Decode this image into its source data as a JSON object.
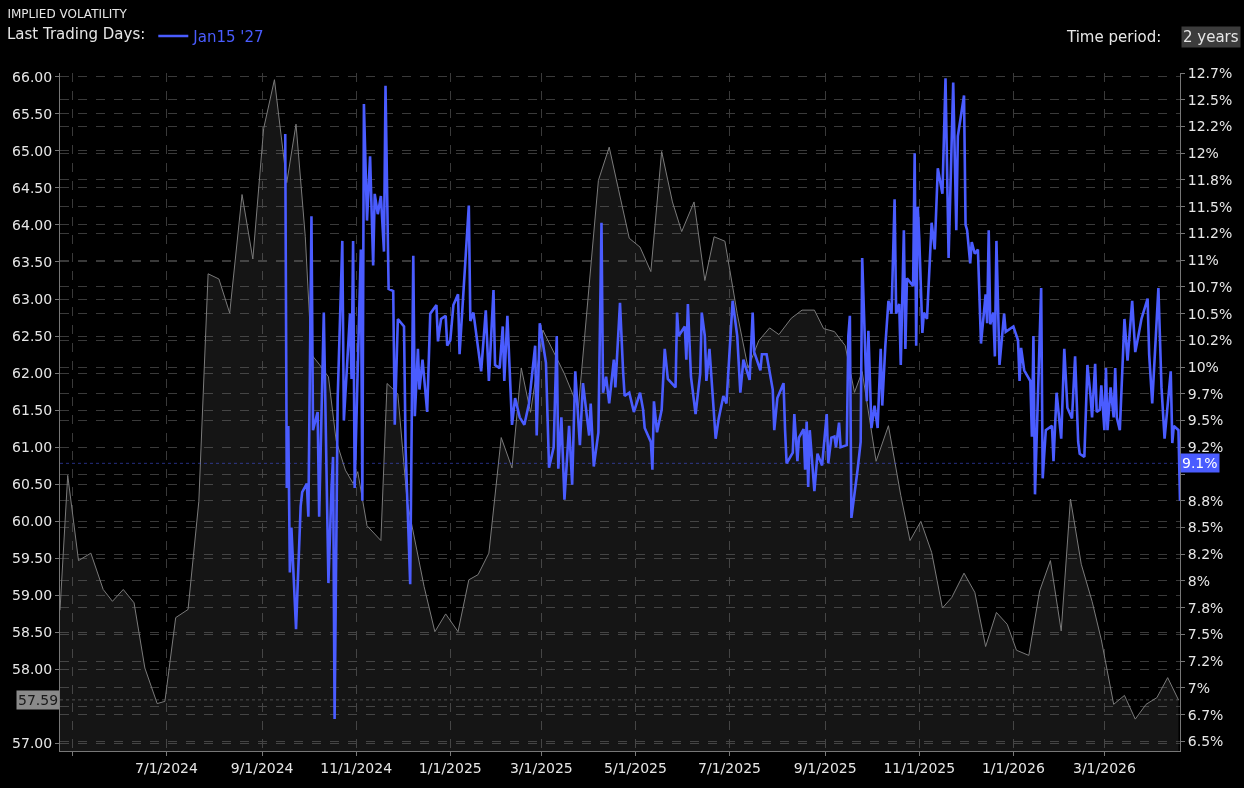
{
  "chart_data": {
    "type": "line",
    "title": "IMPLIED VOLATILITY",
    "legend_title": "Last Trading Days:",
    "annotations": [
      "Time period:",
      "2 years"
    ],
    "ref_lines": [
      {
        "axis": "y",
        "value": 57.59,
        "label": "57.59",
        "line_style": "dotted"
      },
      {
        "axis": "y2",
        "value": 9.1,
        "label": "9.1%",
        "line_style": "dotted"
      }
    ],
    "xlim": [
      "2024-04-23",
      "2026-04-19"
    ],
    "xticks": [
      {
        "value": "2024-05-01",
        "label": null
      },
      {
        "value": "2024-07-01",
        "label": "7/1/2024"
      },
      {
        "value": "2024-09-01",
        "label": "9/1/2024"
      },
      {
        "value": "2024-11-01",
        "label": "11/1/2024"
      },
      {
        "value": "2025-01-01",
        "label": "1/1/2025"
      },
      {
        "value": "2025-03-01",
        "label": "3/1/2025"
      },
      {
        "value": "2025-05-01",
        "label": "5/1/2025"
      },
      {
        "value": "2025-07-01",
        "label": "7/1/2025"
      },
      {
        "value": "2025-09-01",
        "label": "9/1/2025"
      },
      {
        "value": "2025-11-01",
        "label": "11/1/2025"
      },
      {
        "value": "2026-01-01",
        "label": "1/1/2026"
      },
      {
        "value": "2026-03-01",
        "label": "3/1/2026"
      }
    ],
    "ylim": [
      56.9,
      66.05
    ],
    "yticks": [
      {
        "value": 57,
        "label": "57.00"
      },
      {
        "value": 57.5,
        "label": null
      },
      {
        "value": 58,
        "label": "58.00"
      },
      {
        "value": 58.5,
        "label": "58.50"
      },
      {
        "value": 59,
        "label": "59.00"
      },
      {
        "value": 59.5,
        "label": "59.50"
      },
      {
        "value": 60,
        "label": "60.00"
      },
      {
        "value": 60.5,
        "label": "60.50"
      },
      {
        "value": 61,
        "label": "61.00"
      },
      {
        "value": 61.5,
        "label": "61.50"
      },
      {
        "value": 62,
        "label": "62.00"
      },
      {
        "value": 62.5,
        "label": "62.50"
      },
      {
        "value": 63,
        "label": "63.00"
      },
      {
        "value": 63.5,
        "label": "63.50"
      },
      {
        "value": 64,
        "label": "64.00"
      },
      {
        "value": 64.5,
        "label": "64.50"
      },
      {
        "value": 65,
        "label": "65.00"
      },
      {
        "value": 65.5,
        "label": "65.50"
      },
      {
        "value": 66,
        "label": "66.00"
      }
    ],
    "y2lim": [
      6.41,
      12.75
    ],
    "y2ticks": [
      {
        "value": 6.5,
        "label": "6.5%"
      },
      {
        "value": 6.75,
        "label": "6.7%"
      },
      {
        "value": 7,
        "label": "7%"
      },
      {
        "value": 7.25,
        "label": "7.2%"
      },
      {
        "value": 7.5,
        "label": "7.5%"
      },
      {
        "value": 7.75,
        "label": "7.8%"
      },
      {
        "value": 8,
        "label": "8%"
      },
      {
        "value": 8.25,
        "label": "8.2%"
      },
      {
        "value": 8.5,
        "label": "8.5%"
      },
      {
        "value": 8.75,
        "label": "8.8%"
      },
      {
        "value": 9,
        "label": null
      },
      {
        "value": 9.25,
        "label": "9.2%"
      },
      {
        "value": 9.5,
        "label": "9.5%"
      },
      {
        "value": 9.75,
        "label": "9.7%"
      },
      {
        "value": 10,
        "label": "10%"
      },
      {
        "value": 10.25,
        "label": "10.2%"
      },
      {
        "value": 10.5,
        "label": "10.5%"
      },
      {
        "value": 10.75,
        "label": "10.7%"
      },
      {
        "value": 11,
        "label": "11%"
      },
      {
        "value": 11.25,
        "label": "11.2%"
      },
      {
        "value": 11.5,
        "label": "11.5%"
      },
      {
        "value": 11.75,
        "label": "11.8%"
      },
      {
        "value": 12,
        "label": "12%"
      },
      {
        "value": 12.25,
        "label": "12.2%"
      },
      {
        "value": 12.5,
        "label": "12.5%"
      },
      {
        "value": 12.75,
        "label": "12.7%"
      }
    ],
    "grid": true,
    "legend": "top left",
    "series": [
      {
        "type": "area",
        "color": "#7a7a7a",
        "x": [
          "2024-04-23",
          "2024-04-28",
          "2024-05-05",
          "2024-05-13",
          "2024-05-21",
          "2024-05-27",
          "2024-06-03",
          "2024-06-10",
          "2024-06-17",
          "2024-06-25",
          "2024-06-30",
          "2024-07-07",
          "2024-07-15",
          "2024-07-22",
          "2024-07-28",
          "2024-08-04",
          "2024-08-11",
          "2024-08-19",
          "2024-08-26",
          "2024-09-02",
          "2024-09-09",
          "2024-09-17",
          "2024-09-23",
          "2024-09-29",
          "2024-10-03",
          "2024-10-08",
          "2024-10-14",
          "2024-10-19",
          "2024-10-25",
          "2024-10-30",
          "2024-11-02",
          "2024-11-08",
          "2024-11-17",
          "2024-11-21",
          "2024-11-28",
          "2024-12-04",
          "2024-12-15",
          "2024-12-22",
          "2024-12-29",
          "2025-01-06",
          "2025-01-13",
          "2025-01-19",
          "2025-01-26",
          "2025-02-03",
          "2025-02-10",
          "2025-02-16",
          "2025-02-22",
          "2025-03-02",
          "2025-03-16",
          "2025-03-25",
          "2025-04-07",
          "2025-04-14",
          "2025-04-20",
          "2025-04-27",
          "2025-05-04",
          "2025-05-11",
          "2025-05-18",
          "2025-05-25",
          "2025-05-31",
          "2025-06-08",
          "2025-06-15",
          "2025-06-21",
          "2025-06-28",
          "2025-07-06",
          "2025-07-13",
          "2025-07-20",
          "2025-07-27",
          "2025-08-02",
          "2025-08-10",
          "2025-08-17",
          "2025-08-25",
          "2025-08-31",
          "2025-09-07",
          "2025-09-14",
          "2025-09-20",
          "2025-09-25",
          "2025-10-04",
          "2025-10-12",
          "2025-10-20",
          "2025-10-26",
          "2025-11-02",
          "2025-11-09",
          "2025-11-16",
          "2025-11-22",
          "2025-11-30",
          "2025-12-07",
          "2025-12-14",
          "2025-12-21",
          "2025-12-28",
          "2026-01-03",
          "2026-01-11",
          "2026-01-18",
          "2026-01-25",
          "2026-02-01",
          "2026-02-07",
          "2026-02-14",
          "2026-02-21",
          "2026-02-27",
          "2026-03-07",
          "2026-03-14",
          "2026-03-21",
          "2026-03-28",
          "2026-04-04",
          "2026-04-11",
          "2026-04-18"
        ],
        "values": [
          58.8,
          60.62,
          59.47,
          59.57,
          59.08,
          58.92,
          59.08,
          58.9,
          58.02,
          57.54,
          57.57,
          58.7,
          58.81,
          60.27,
          63.34,
          63.27,
          62.81,
          64.41,
          63.54,
          65.3,
          65.96,
          64.57,
          65.36,
          63.84,
          62.25,
          62.12,
          61.95,
          61.09,
          60.69,
          60.51,
          60.67,
          59.94,
          59.74,
          61.86,
          61.72,
          60.27,
          59.12,
          58.51,
          58.75,
          58.51,
          59.21,
          59.28,
          59.57,
          61.13,
          60.72,
          62.07,
          61.47,
          62.58,
          61.99,
          61.53,
          64.6,
          65.05,
          64.48,
          63.82,
          63.7,
          63.37,
          64.99,
          64.31,
          63.91,
          64.31,
          63.25,
          63.84,
          63.78,
          62.8,
          62.07,
          62.44,
          62.61,
          62.52,
          62.74,
          62.85,
          62.85,
          62.6,
          62.56,
          62.37,
          61.74,
          62.02,
          60.81,
          61.29,
          60.35,
          59.74,
          60.0,
          59.58,
          58.83,
          58.97,
          59.3,
          59.04,
          58.31,
          58.77,
          58.61,
          58.26,
          58.19,
          59.06,
          59.47,
          58.52,
          60.3,
          59.42,
          58.92,
          58.4,
          57.53,
          57.65,
          57.33,
          57.53,
          57.62,
          57.89,
          57.59
        ]
      },
      {
        "name": "Jan15 '27",
        "axis": "y2",
        "color": "#4a5cff",
        "x": [
          "2024-09-16",
          "2024-09-17",
          "2024-09-18",
          "2024-09-19",
          "2024-09-20",
          "2024-09-23",
          "2024-09-26",
          "2024-09-27",
          "2024-09-30",
          "2024-10-01",
          "2024-10-03",
          "2024-10-04",
          "2024-10-07",
          "2024-10-08",
          "2024-10-11",
          "2024-10-14",
          "2024-10-16",
          "2024-10-17",
          "2024-10-18",
          "2024-10-20",
          "2024-10-23",
          "2024-10-24",
          "2024-10-28",
          "2024-10-29",
          "2024-10-30",
          "2024-10-31",
          "2024-11-04",
          "2024-11-05",
          "2024-11-06",
          "2024-11-08",
          "2024-11-10",
          "2024-11-12",
          "2024-11-13",
          "2024-11-15",
          "2024-11-17",
          "2024-11-19",
          "2024-11-20",
          "2024-11-22",
          "2024-11-25",
          "2024-11-26",
          "2024-11-28",
          "2024-12-02",
          "2024-12-03",
          "2024-12-06",
          "2024-12-08",
          "2024-12-09",
          "2024-12-11",
          "2024-12-12",
          "2024-12-14",
          "2024-12-17",
          "2024-12-19",
          "2024-12-23",
          "2024-12-24",
          "2024-12-26",
          "2024-12-29",
          "2024-12-30",
          "2025-01-01",
          "2025-01-03",
          "2025-01-06",
          "2025-01-07",
          "2025-01-13",
          "2025-01-14",
          "2025-01-16",
          "2025-01-18",
          "2025-01-21",
          "2025-01-24",
          "2025-01-26",
          "2025-01-29",
          "2025-01-30",
          "2025-02-02",
          "2025-02-04",
          "2025-02-05",
          "2025-02-07",
          "2025-02-10",
          "2025-02-12",
          "2025-02-15",
          "2025-02-18",
          "2025-02-21",
          "2025-02-25",
          "2025-02-26",
          "2025-02-28",
          "2025-03-04",
          "2025-03-06",
          "2025-03-09",
          "2025-03-11",
          "2025-03-12",
          "2025-03-14",
          "2025-03-16",
          "2025-03-19",
          "2025-03-21",
          "2025-03-23",
          "2025-03-26",
          "2025-03-28",
          "2025-04-01",
          "2025-04-02",
          "2025-04-04",
          "2025-04-07",
          "2025-04-09",
          "2025-04-10",
          "2025-04-12",
          "2025-04-14",
          "2025-04-17",
          "2025-04-18",
          "2025-04-21",
          "2025-04-23",
          "2025-04-24",
          "2025-04-27",
          "2025-04-30",
          "2025-05-04",
          "2025-05-06",
          "2025-05-07",
          "2025-05-11",
          "2025-05-12",
          "2025-05-13",
          "2025-05-15",
          "2025-05-18",
          "2025-05-20",
          "2025-05-22",
          "2025-05-27",
          "2025-05-28",
          "2025-05-29",
          "2025-06-02",
          "2025-06-03",
          "2025-06-04",
          "2025-06-06",
          "2025-06-09",
          "2025-06-12",
          "2025-06-13",
          "2025-06-15",
          "2025-06-16",
          "2025-06-18",
          "2025-06-22",
          "2025-06-24",
          "2025-06-27",
          "2025-06-29",
          "2025-07-03",
          "2025-07-06",
          "2025-07-08",
          "2025-07-10",
          "2025-07-14",
          "2025-07-16",
          "2025-07-17",
          "2025-07-21",
          "2025-07-22",
          "2025-07-25",
          "2025-07-29",
          "2025-07-30",
          "2025-08-01",
          "2025-08-05",
          "2025-08-06",
          "2025-08-07",
          "2025-08-11",
          "2025-08-12",
          "2025-08-14",
          "2025-08-15",
          "2025-08-18",
          "2025-08-19",
          "2025-08-20",
          "2025-08-21",
          "2025-08-22",
          "2025-08-25",
          "2025-08-27",
          "2025-08-30",
          "2025-09-02",
          "2025-09-03",
          "2025-09-05",
          "2025-09-07",
          "2025-09-08",
          "2025-09-10",
          "2025-09-11",
          "2025-09-15",
          "2025-09-16",
          "2025-09-17",
          "2025-09-18",
          "2025-09-22",
          "2025-09-24",
          "2025-09-25",
          "2025-09-28",
          "2025-09-29",
          "2025-10-01",
          "2025-10-03",
          "2025-10-05",
          "2025-10-07",
          "2025-10-08",
          "2025-10-10",
          "2025-10-12",
          "2025-10-14",
          "2025-10-16",
          "2025-10-17",
          "2025-10-19",
          "2025-10-20",
          "2025-10-22",
          "2025-10-23",
          "2025-10-24",
          "2025-10-28",
          "2025-10-29",
          "2025-10-30",
          "2025-10-31",
          "2025-11-01",
          "2025-11-03",
          "2025-11-04",
          "2025-11-06",
          "2025-11-09",
          "2025-11-11",
          "2025-11-13",
          "2025-11-16",
          "2025-11-18",
          "2025-11-20",
          "2025-11-23",
          "2025-11-25",
          "2025-11-26",
          "2025-11-30",
          "2025-12-01",
          "2025-12-02",
          "2025-12-04",
          "2025-12-05",
          "2025-12-07",
          "2025-12-09",
          "2025-12-11",
          "2025-12-14",
          "2025-12-15",
          "2025-12-16",
          "2025-12-17",
          "2025-12-19",
          "2025-12-20",
          "2025-12-21",
          "2025-12-23",
          "2025-12-26",
          "2025-12-27",
          "2026-01-01",
          "2026-01-04",
          "2026-01-05",
          "2026-01-06",
          "2026-01-08",
          "2026-01-12",
          "2026-01-13",
          "2026-01-14",
          "2026-01-15",
          "2026-01-19",
          "2026-01-20",
          "2026-01-22",
          "2026-01-26",
          "2026-01-27",
          "2026-01-29",
          "2026-02-01",
          "2026-02-03",
          "2026-02-05",
          "2026-02-08",
          "2026-02-10",
          "2026-02-12",
          "2026-02-13",
          "2026-02-16",
          "2026-02-18",
          "2026-02-20",
          "2026-02-21",
          "2026-02-23",
          "2026-02-24",
          "2026-02-26",
          "2026-02-27",
          "2026-03-01",
          "2026-03-02",
          "2026-03-03",
          "2026-03-05",
          "2026-03-07",
          "2026-03-08",
          "2026-03-09",
          "2026-03-11",
          "2026-03-14",
          "2026-03-16",
          "2026-03-19",
          "2026-03-21",
          "2026-03-23",
          "2026-03-25",
          "2026-03-29",
          "2026-03-30",
          "2026-04-01",
          "2026-04-05",
          "2026-04-07",
          "2026-04-09",
          "2026-04-13",
          "2026-04-14",
          "2026-04-15",
          "2026-04-18",
          "2026-04-19"
        ],
        "values": [
          12.18,
          8.87,
          9.45,
          8.08,
          8.5,
          7.55,
          8.7,
          8.83,
          8.91,
          8.6,
          11.41,
          9.41,
          9.58,
          8.6,
          10.51,
          7.98,
          8.87,
          9.16,
          6.71,
          9.71,
          11.18,
          9.5,
          10.5,
          9.89,
          11.18,
          8.87,
          11.1,
          8.75,
          12.46,
          11.37,
          11.97,
          10.95,
          11.62,
          11.43,
          11.6,
          11.08,
          12.63,
          10.73,
          10.71,
          9.46,
          10.45,
          10.38,
          9.25,
          7.97,
          11.04,
          9.54,
          10.17,
          9.79,
          10.07,
          9.58,
          10.5,
          10.58,
          10.24,
          10.45,
          10.48,
          10.2,
          10.25,
          10.58,
          10.68,
          10.12,
          11.51,
          10.43,
          10.51,
          10.29,
          9.96,
          10.53,
          9.87,
          10.72,
          10.02,
          9.99,
          10.38,
          9.87,
          10.48,
          9.46,
          9.71,
          9.53,
          9.46,
          9.66,
          10.2,
          9.36,
          10.41,
          10.04,
          9.06,
          9.25,
          10.29,
          9.05,
          9.53,
          8.76,
          9.45,
          8.9,
          9.96,
          9.27,
          9.85,
          9.36,
          9.66,
          9.07,
          9.39,
          11.35,
          9.76,
          9.91,
          9.66,
          10.07,
          9.81,
          10.6,
          9.96,
          9.73,
          9.76,
          9.58,
          9.76,
          9.6,
          9.43,
          9.3,
          9.04,
          9.68,
          9.39,
          9.6,
          10.17,
          9.89,
          9.81,
          10.51,
          10.29,
          10.38,
          10.07,
          10.59,
          9.91,
          9.56,
          9.94,
          10.51,
          10.29,
          9.87,
          10.17,
          9.33,
          9.52,
          9.73,
          9.66,
          10.62,
          10.29,
          9.76,
          10.07,
          9.88,
          10.51,
          10.14,
          9.97,
          10.12,
          10.12,
          9.79,
          9.41,
          9.71,
          9.85,
          9.41,
          9.1,
          9.2,
          9.56,
          9.12,
          9.34,
          9.42,
          9.04,
          9.49,
          8.88,
          9.41,
          8.84,
          9.19,
          9.08,
          9.56,
          9.1,
          9.34,
          9.35,
          9.25,
          9.48,
          9.25,
          9.27,
          10.29,
          10.48,
          8.59,
          9.04,
          9.3,
          11.02,
          9.68,
          10.34,
          9.43,
          9.64,
          9.43,
          10.17,
          9.64,
          10.2,
          10.62,
          10.5,
          11.57,
          10.5,
          10.59,
          10.02,
          11.28,
          10.17,
          10.83,
          10.76,
          12.0,
          10.2,
          11.5,
          11.2,
          10.32,
          10.51,
          10.45,
          11.35,
          11.1,
          11.86,
          11.62,
          12.7,
          11.02,
          12.66,
          11.28,
          12.16,
          12.54,
          11.33,
          11.28,
          10.97,
          11.17,
          11.06,
          11.1,
          10.22,
          10.68,
          10.41,
          11.28,
          10.4,
          10.51,
          10.1,
          11.18,
          10.02,
          10.5,
          10.33,
          10.38,
          10.25,
          9.87,
          10.18,
          9.97,
          9.87,
          9.35,
          10.29,
          8.81,
          10.74,
          8.96,
          9.41,
          9.45,
          9.12,
          9.76,
          9.33,
          10.17,
          9.62,
          9.52,
          10.1,
          9.3,
          9.19,
          9.16,
          10.02,
          9.73,
          9.53,
          10.03,
          9.58,
          9.6,
          9.83,
          9.41,
          9.99,
          9.41,
          9.81,
          9.53,
          9.99,
          9.53,
          9.41,
          10.45,
          10.06,
          10.62,
          10.14,
          10.29,
          10.45,
          10.64,
          10.12,
          9.66,
          10.74,
          9.81,
          9.33,
          9.96,
          9.29,
          9.45,
          9.41,
          8.75
        ]
      }
    ]
  }
}
